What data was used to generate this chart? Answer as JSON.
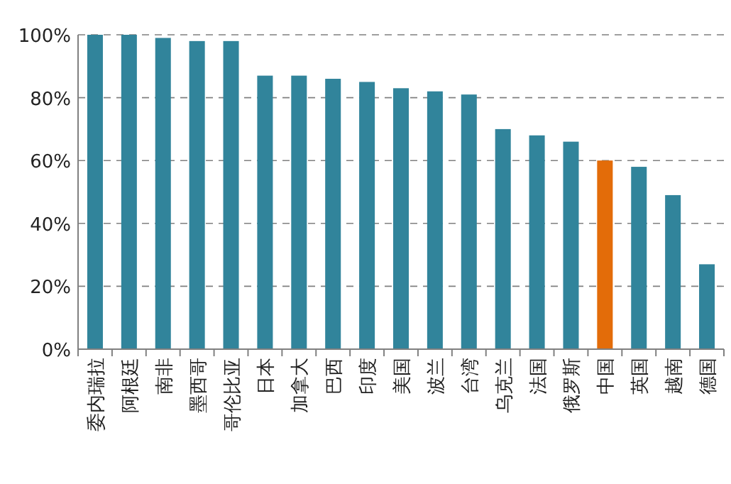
{
  "chart_data": {
    "type": "bar",
    "categories": [
      "委内瑞拉",
      "阿根廷",
      "南非",
      "墨西哥",
      "哥伦比亚",
      "日本",
      "加拿大",
      "巴西",
      "印度",
      "美国",
      "波兰",
      "台湾",
      "乌克兰",
      "法国",
      "俄罗斯",
      "中国",
      "英国",
      "越南",
      "德国"
    ],
    "values": [
      100,
      100,
      99,
      98,
      98,
      87,
      87,
      86,
      85,
      83,
      82,
      81,
      70,
      68,
      66,
      60,
      58,
      49,
      27
    ],
    "colors": [
      "#31849b",
      "#31849b",
      "#31849b",
      "#31849b",
      "#31849b",
      "#31849b",
      "#31849b",
      "#31849b",
      "#31849b",
      "#31849b",
      "#31849b",
      "#31849b",
      "#31849b",
      "#31849b",
      "#31849b",
      "#e36c09",
      "#31849b",
      "#31849b",
      "#31849b"
    ],
    "ylim": [
      0,
      100
    ],
    "yticks": [
      {
        "value": 0,
        "label": "0%"
      },
      {
        "value": 20,
        "label": "20%"
      },
      {
        "value": 40,
        "label": "40%"
      },
      {
        "value": 60,
        "label": "60%"
      },
      {
        "value": 80,
        "label": "80%"
      },
      {
        "value": 100,
        "label": "100%"
      }
    ],
    "grid": "y"
  }
}
